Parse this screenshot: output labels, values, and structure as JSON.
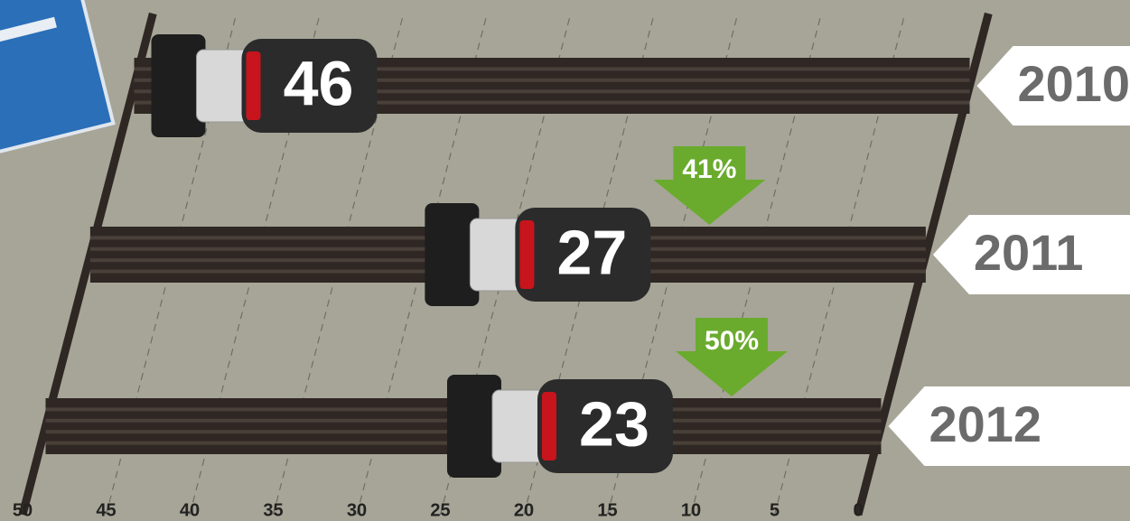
{
  "chart_data": {
    "type": "bar",
    "orientation": "horizontal",
    "categories": [
      "2010",
      "2011",
      "2012"
    ],
    "values": [
      46,
      27,
      23
    ],
    "annotations": [
      "41%",
      "50%"
    ],
    "xlim": [
      50,
      0
    ],
    "xticks": [
      50,
      45,
      40,
      35,
      30,
      25,
      20,
      15,
      10,
      5,
      0
    ],
    "grid": true,
    "color": "#2f2723",
    "annotation_color": "#6aab2e"
  }
}
